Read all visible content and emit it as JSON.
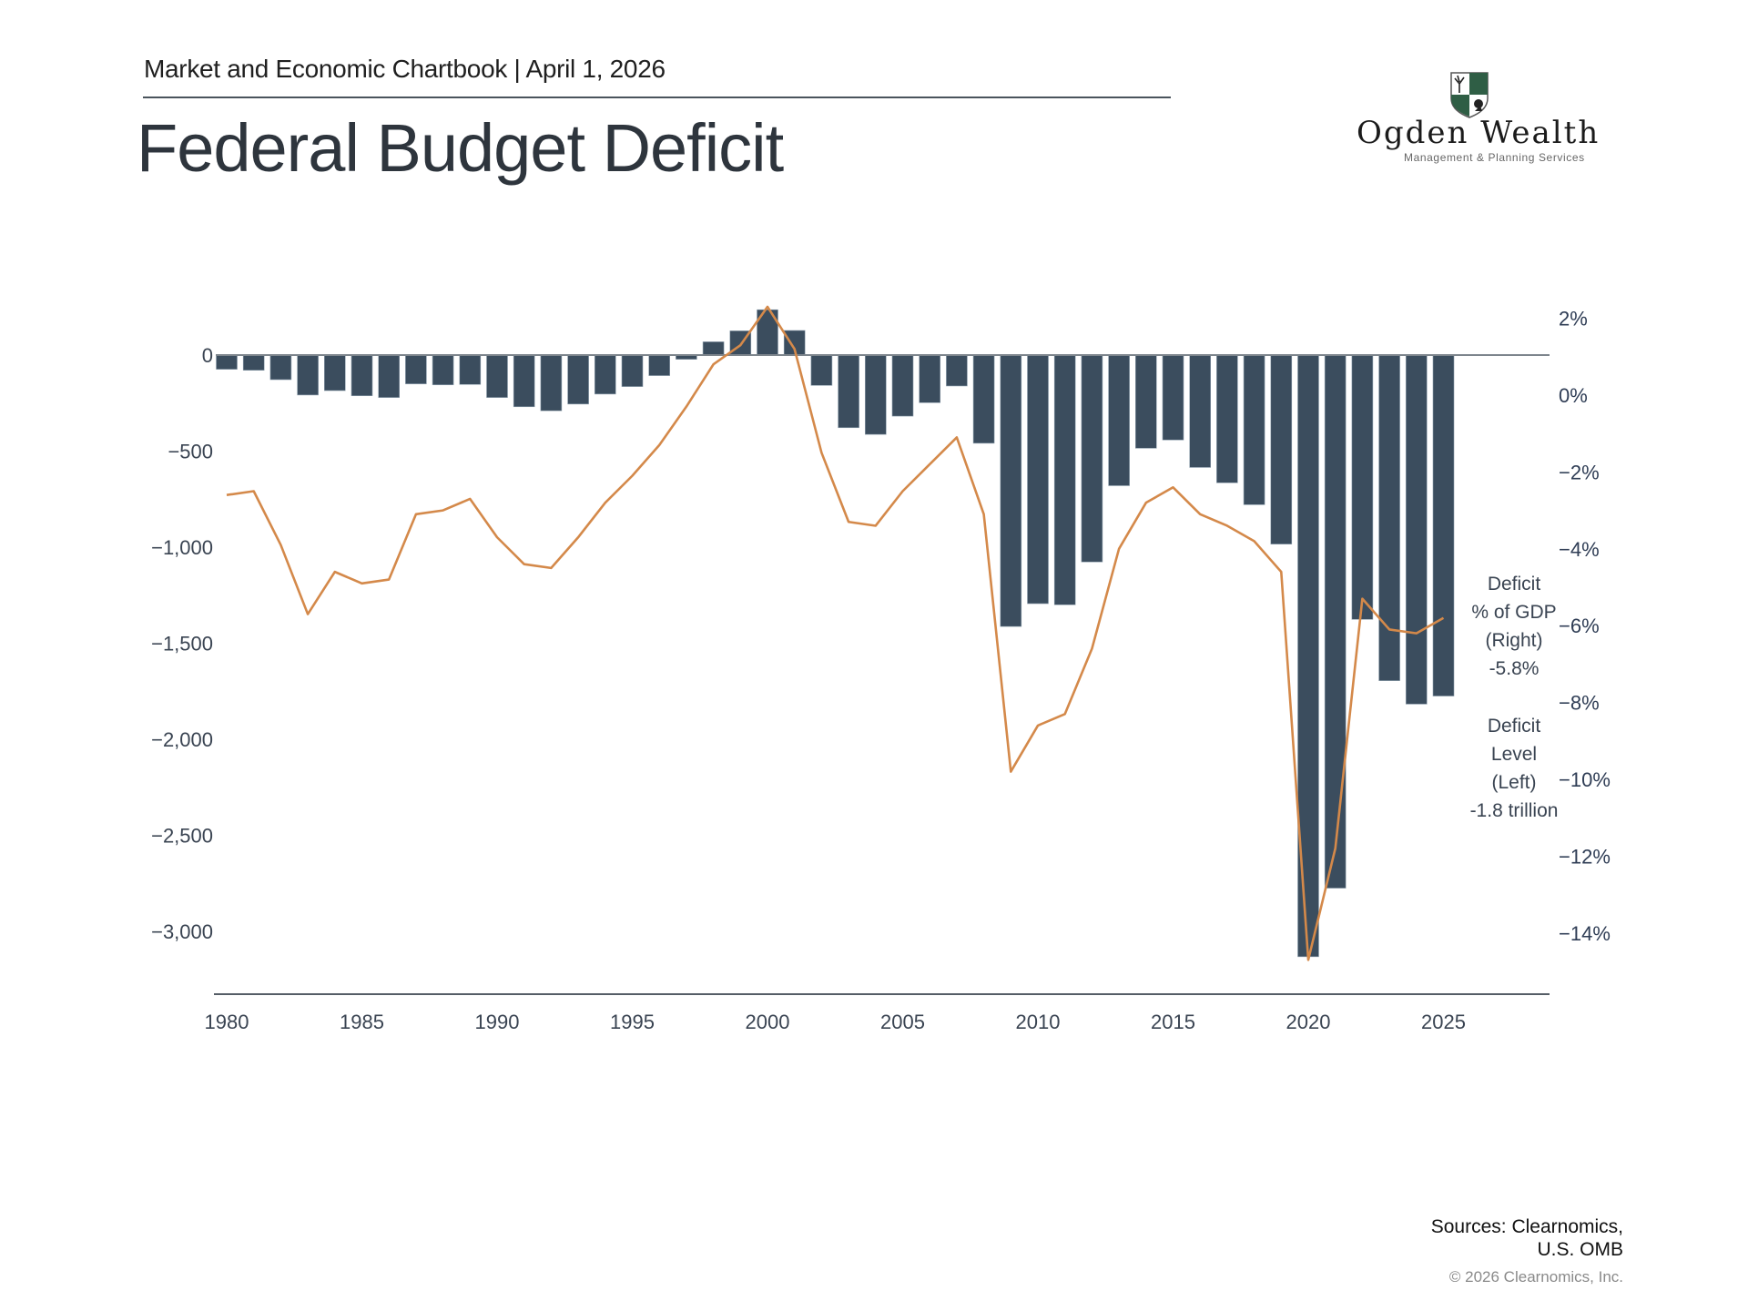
{
  "header": {
    "chartbook_label": "Market and Economic Chartbook | April 1, 2026",
    "title": "Federal Budget Deficit"
  },
  "logo": {
    "name": "Ogden Wealth",
    "tagline": "Management & Planning Services",
    "icon": "shield-crest-icon"
  },
  "footer": {
    "sources_line1": "Sources: Clearnomics,",
    "sources_line2": "U.S. OMB",
    "copyright": "© 2026 Clearnomics, Inc."
  },
  "colors": {
    "bars": "#3b4d5e",
    "line": "#d4894a",
    "axis": "#555d66"
  },
  "chart_data": {
    "type": "bar+line",
    "title": "Federal Budget Deficit",
    "x": [
      1980,
      1981,
      1982,
      1983,
      1984,
      1985,
      1986,
      1987,
      1988,
      1989,
      1990,
      1991,
      1992,
      1993,
      1994,
      1995,
      1996,
      1997,
      1998,
      1999,
      2000,
      2001,
      2002,
      2003,
      2004,
      2005,
      2006,
      2007,
      2008,
      2009,
      2010,
      2011,
      2012,
      2013,
      2014,
      2015,
      2016,
      2017,
      2018,
      2019,
      2020,
      2021,
      2022,
      2023,
      2024,
      2025
    ],
    "series": [
      {
        "name": "Deficit Level (Left)",
        "type": "bar",
        "axis": "left",
        "units": "USD billions",
        "values": [
          -74,
          -79,
          -128,
          -208,
          -185,
          -212,
          -221,
          -150,
          -155,
          -153,
          -221,
          -269,
          -290,
          -255,
          -203,
          -164,
          -107,
          -22,
          69,
          126,
          236,
          128,
          -158,
          -378,
          -413,
          -318,
          -248,
          -161,
          -459,
          -1413,
          -1294,
          -1300,
          -1077,
          -680,
          -485,
          -442,
          -585,
          -665,
          -779,
          -984,
          -3132,
          -2775,
          -1376,
          -1695,
          -1817,
          -1775
        ],
        "latest_label": "Deficit Level (Left) -1.8 trillion"
      },
      {
        "name": "Deficit % of GDP (Right)",
        "type": "line",
        "axis": "right",
        "units": "percent of GDP",
        "values": [
          -2.6,
          -2.5,
          -3.9,
          -5.7,
          -4.6,
          -4.9,
          -4.8,
          -3.1,
          -3.0,
          -2.7,
          -3.7,
          -4.4,
          -4.5,
          -3.7,
          -2.8,
          -2.1,
          -1.3,
          -0.3,
          0.8,
          1.3,
          2.3,
          1.2,
          -1.5,
          -3.3,
          -3.4,
          -2.5,
          -1.8,
          -1.1,
          -3.1,
          -9.8,
          -8.6,
          -8.3,
          -6.6,
          -4.0,
          -2.8,
          -2.4,
          -3.1,
          -3.4,
          -3.8,
          -4.6,
          -14.7,
          -11.8,
          -5.3,
          -6.1,
          -6.2,
          -5.8
        ],
        "latest_label": "Deficit % of GDP (Right) -5.8%"
      }
    ],
    "left_axis": {
      "ticks": [
        0,
        -500,
        -1000,
        -1500,
        -2000,
        -2500,
        -3000
      ],
      "tick_labels": [
        "0",
        "−500",
        "−1,000",
        "−1,500",
        "−2,000",
        "−2,500",
        "−3,000"
      ],
      "range": [
        -3300,
        400
      ]
    },
    "right_axis": {
      "ticks": [
        2,
        0,
        -2,
        -4,
        -6,
        -8,
        -10,
        -12,
        -14
      ],
      "tick_labels": [
        "2%",
        "0%",
        "−2%",
        "−4%",
        "−6%",
        "−8%",
        "−10%",
        "−12%",
        "−14%"
      ]
    },
    "x_axis": {
      "ticks": [
        1980,
        1985,
        1990,
        1995,
        2000,
        2005,
        2010,
        2015,
        2020,
        2025
      ],
      "tick_labels": [
        "1980",
        "1985",
        "1990",
        "1995",
        "2000",
        "2005",
        "2010",
        "2015",
        "2020",
        "2025"
      ],
      "range": [
        1980,
        2029
      ]
    },
    "annotations": [
      {
        "lines": [
          "Deficit",
          "% of GDP",
          "(Right)",
          "-5.8%"
        ]
      },
      {
        "lines": [
          "Deficit",
          "Level",
          "(Left)",
          "-1.8 trillion"
        ]
      }
    ],
    "grid": false,
    "legend": "none (inline annotations at right)"
  }
}
